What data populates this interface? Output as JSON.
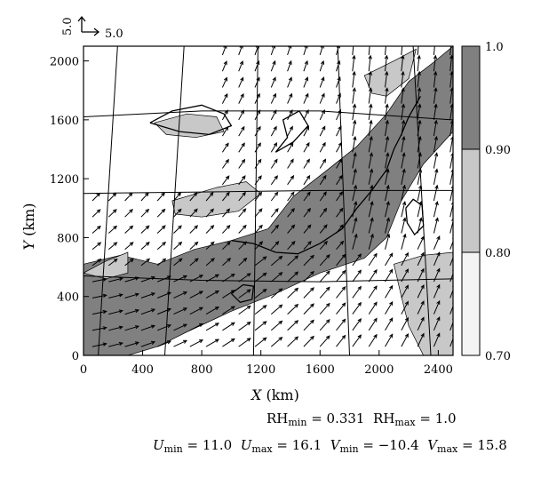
{
  "chart_data": {
    "type": "heatmap",
    "xlabel_var": "X",
    "xlabel_unit": " (km)",
    "ylabel_var": "Y",
    "ylabel_unit": " (km)",
    "xlim": [
      0,
      2500
    ],
    "ylim": [
      0,
      2100
    ],
    "x_ticks": [
      0,
      400,
      800,
      1200,
      1600,
      2000,
      2400
    ],
    "y_ticks": [
      0,
      400,
      800,
      1200,
      1600,
      2000
    ],
    "colorbar": {
      "ticks": [
        "0.70",
        "0.80",
        "0.90",
        "1.0"
      ],
      "levels": [
        {
          "from": 0.7,
          "to": 0.8,
          "color": "#f4f4f4"
        },
        {
          "from": 0.8,
          "to": 0.9,
          "color": "#c8c8c8"
        },
        {
          "from": 0.9,
          "to": 1.0,
          "color": "#808080"
        }
      ]
    },
    "reference_vector": {
      "x_label": "5.0",
      "y_label": "5.0"
    },
    "stats": {
      "RH_min": "0.331",
      "RH_max": "1.0",
      "U_min": "11.0",
      "U_max": "16.1",
      "V_min": "−10.4",
      "V_max": "15.8"
    },
    "shading_regions": [
      {
        "level": 0.9,
        "points": [
          [
            0,
            0
          ],
          [
            0,
            620
          ],
          [
            250,
            680
          ],
          [
            500,
            620
          ],
          [
            750,
            720
          ],
          [
            1000,
            780
          ],
          [
            1250,
            860
          ],
          [
            1420,
            1080
          ],
          [
            1650,
            1260
          ],
          [
            1850,
            1420
          ],
          [
            2050,
            1640
          ],
          [
            2200,
            1860
          ],
          [
            2380,
            2000
          ],
          [
            2500,
            2100
          ],
          [
            2500,
            1520
          ],
          [
            2300,
            1300
          ],
          [
            2150,
            1050
          ],
          [
            2050,
            800
          ],
          [
            1900,
            660
          ],
          [
            1600,
            560
          ],
          [
            1300,
            420
          ],
          [
            1000,
            300
          ],
          [
            700,
            160
          ],
          [
            500,
            60
          ],
          [
            300,
            0
          ]
        ]
      },
      {
        "level": 0.8,
        "points": [
          [
            600,
            1050
          ],
          [
            900,
            1140
          ],
          [
            1100,
            1180
          ],
          [
            1200,
            1100
          ],
          [
            1050,
            980
          ],
          [
            800,
            940
          ],
          [
            620,
            960
          ]
        ]
      },
      {
        "level": 0.8,
        "points": [
          [
            1900,
            1900
          ],
          [
            2100,
            2000
          ],
          [
            2250,
            2080
          ],
          [
            2200,
            1880
          ],
          [
            2050,
            1760
          ],
          [
            1950,
            1780
          ]
        ]
      },
      {
        "level": 0.8,
        "points": [
          [
            2100,
            620
          ],
          [
            2300,
            680
          ],
          [
            2500,
            700
          ],
          [
            2500,
            0
          ],
          [
            2300,
            0
          ],
          [
            2200,
            200
          ],
          [
            2150,
            400
          ]
        ]
      },
      {
        "level": 0.8,
        "points": [
          [
            480,
            1580
          ],
          [
            700,
            1640
          ],
          [
            900,
            1620
          ],
          [
            950,
            1520
          ],
          [
            760,
            1480
          ],
          [
            560,
            1500
          ]
        ]
      },
      {
        "level": 0.8,
        "points": [
          [
            0,
            560
          ],
          [
            150,
            640
          ],
          [
            300,
            700
          ],
          [
            300,
            560
          ],
          [
            150,
            520
          ]
        ]
      }
    ],
    "coast_lines": [
      [
        [
          1000,
          780
        ],
        [
          1150,
          760
        ],
        [
          1300,
          700
        ],
        [
          1450,
          690
        ],
        [
          1600,
          760
        ],
        [
          1750,
          860
        ],
        [
          1850,
          1000
        ],
        [
          1950,
          1120
        ],
        [
          2050,
          1260
        ],
        [
          2100,
          1400
        ],
        [
          2150,
          1500
        ],
        [
          2200,
          1620
        ],
        [
          2280,
          1760
        ]
      ],
      [
        [
          2180,
          1000
        ],
        [
          2230,
          1060
        ],
        [
          2290,
          1020
        ],
        [
          2300,
          880
        ],
        [
          2240,
          820
        ],
        [
          2190,
          900
        ],
        [
          2180,
          1000
        ]
      ],
      [
        [
          1000,
          420
        ],
        [
          1080,
          480
        ],
        [
          1150,
          470
        ],
        [
          1140,
          380
        ],
        [
          1060,
          360
        ],
        [
          1000,
          420
        ]
      ],
      [
        [
          450,
          1580
        ],
        [
          600,
          1660
        ],
        [
          800,
          1700
        ],
        [
          950,
          1640
        ],
        [
          1000,
          1560
        ],
        [
          850,
          1500
        ],
        [
          650,
          1520
        ],
        [
          450,
          1580
        ]
      ],
      [
        [
          1300,
          1380
        ],
        [
          1380,
          1480
        ],
        [
          1350,
          1600
        ],
        [
          1460,
          1660
        ],
        [
          1520,
          1560
        ],
        [
          1420,
          1450
        ],
        [
          1300,
          1380
        ]
      ]
    ],
    "grid_lines": [
      [
        [
          0,
          1620
        ],
        [
          800,
          1660
        ],
        [
          1600,
          1660
        ],
        [
          2500,
          1600
        ]
      ],
      [
        [
          0,
          1100
        ],
        [
          800,
          1110
        ],
        [
          1600,
          1120
        ],
        [
          2500,
          1120
        ]
      ],
      [
        [
          0,
          540
        ],
        [
          800,
          510
        ],
        [
          1600,
          500
        ],
        [
          2500,
          520
        ]
      ],
      [
        [
          100,
          0
        ],
        [
          230,
          2100
        ]
      ],
      [
        [
          550,
          0
        ],
        [
          680,
          2100
        ]
      ],
      [
        [
          1150,
          0
        ],
        [
          1180,
          2100
        ]
      ],
      [
        [
          1800,
          0
        ],
        [
          1720,
          2100
        ]
      ],
      [
        [
          2350,
          0
        ],
        [
          2230,
          2100
        ]
      ]
    ]
  }
}
